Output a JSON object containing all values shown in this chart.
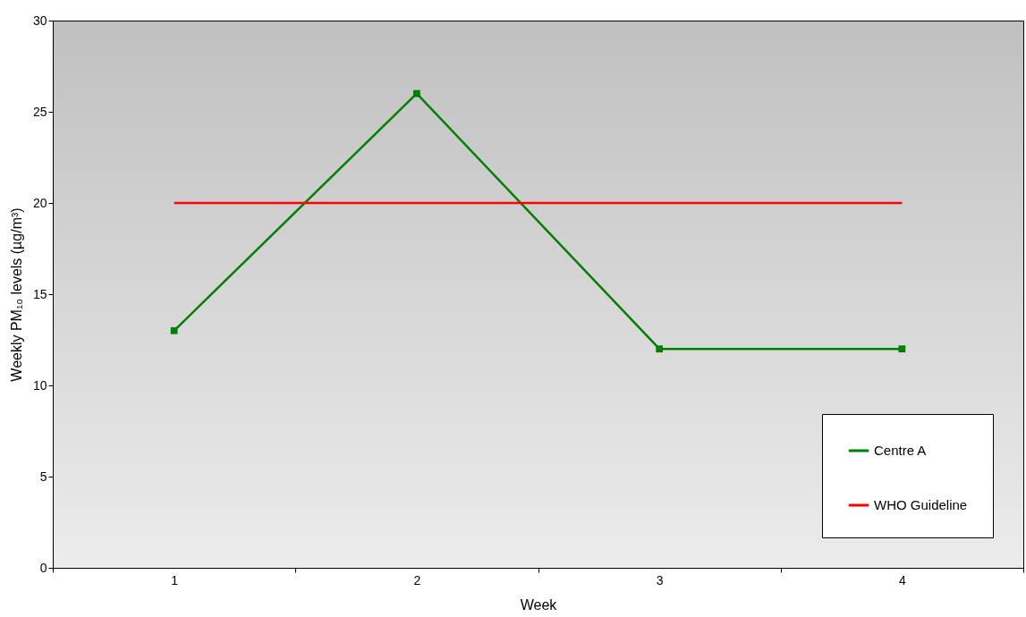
{
  "chart_data": {
    "type": "line",
    "xlabel": "Week",
    "ylabel": "Weekly PM₁₀ levels (µg/m³)",
    "categories": [
      "1",
      "2",
      "3",
      "4"
    ],
    "ylim": [
      0,
      30
    ],
    "yticks": [
      0,
      5,
      10,
      15,
      20,
      25,
      30
    ],
    "legend": "bottom right",
    "marker": "square",
    "series": [
      {
        "name": "Centre A",
        "color": "#008000",
        "values": [
          13,
          26,
          12,
          12
        ]
      },
      {
        "name": "WHO Guideline",
        "color": "#ff0000",
        "values": [
          20,
          20,
          20,
          20
        ],
        "marker": "none"
      }
    ]
  }
}
